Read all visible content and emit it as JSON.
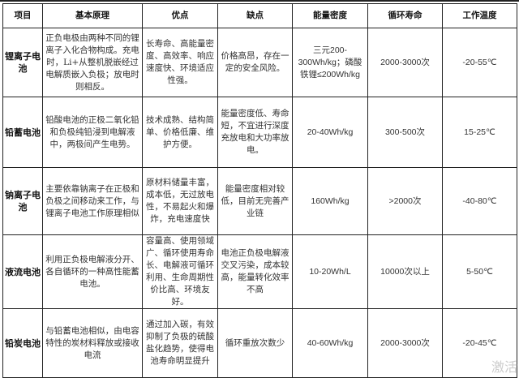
{
  "headers": [
    "项目",
    "基本原理",
    "优点",
    "缺点",
    "能量密度",
    "循环寿命",
    "工作温度"
  ],
  "rows": [
    {
      "name": "锂离子电池",
      "principle": "正负电极由两种不同的锂离子入化合物构成。充电时，Li+从整机脱嵌经过电解质嵌入负极；放电时则相反。",
      "pros": "长寿命、高能量密度、高效率、响应速度快、环境适应性强。",
      "cons": "价格高昂，存在一定的安全风险。",
      "energy": "三元200-300Wh/kg；磷酸铁锂≤200Wh/kg",
      "cycle": "2000-3000次",
      "temp": "-20-55℃"
    },
    {
      "name": "铅蓄电池",
      "principle": "铅酸电池的正极二氧化铅和负极纯铅浸到电解液中，两极间产生电势。",
      "pros": "技术成熟、结构简单、价格低廉、维护方便。",
      "cons": "能量密度低、寿命短，不宜进行深度充放电和大功率放电。",
      "energy": "20-40Wh/kg",
      "cycle": "300-500次",
      "temp": "15-25℃"
    },
    {
      "name": "钠离子电池",
      "principle": "主要依靠钠离子在正极和负极之间移动来工作，与锂离子电池工作原理相似",
      "pros": "原材料储量丰富，成本低，无过放电性，不易起火和爆炸，充电速度快",
      "cons": "能量密度相对较低，目前无完善产业链",
      "energy": "160Wh/kg",
      "cycle": ">2000次",
      "temp": "-40-80℃"
    },
    {
      "name": "液流电池",
      "principle": "利用正负极电解液分开、各自循环的一种高性能蓄电池。",
      "pros": "容量高、使用领域广、循环使用寿命长、电解液可循环利用、生命周期性价比高、环境友好。",
      "cons": "电池正负极电解液交叉污染，成本较高，能量转化效率不高",
      "energy": "10-20Wh/L",
      "cycle": "10000次以上",
      "temp": "5-50℃"
    },
    {
      "name": "铅炭电池",
      "principle": "与铅蓄电池相似，由电容特性的炭材料释放或接收电流",
      "pros": "通过加入碳，有效抑制了负极的硫酸盐化趋势，使得电池寿命明显提升",
      "cons": "循环重放次数少",
      "energy": "40-60Wh/kg",
      "cycle": "2000-3000次",
      "temp": "-20-45℃"
    }
  ],
  "watermark": "激活"
}
